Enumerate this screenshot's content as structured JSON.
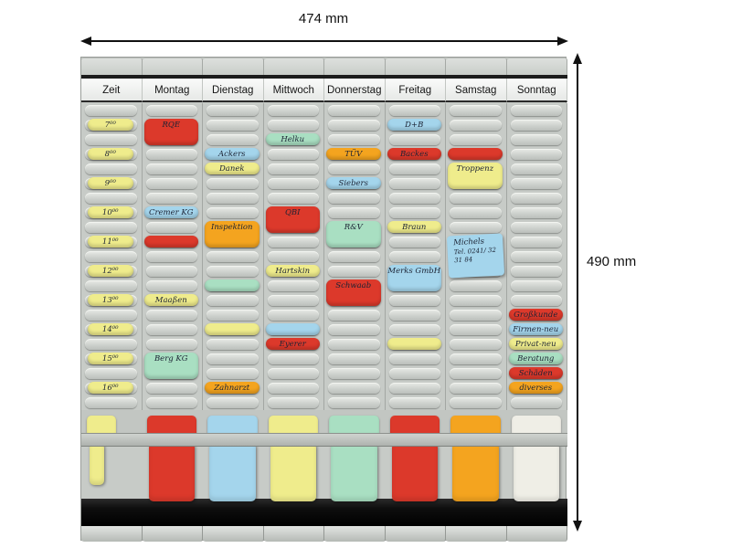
{
  "annotations": {
    "width_label": "474 mm",
    "height_label": "490 mm"
  },
  "board": {
    "columns": [
      {
        "header": "Zeit"
      },
      {
        "header": "Montag"
      },
      {
        "header": "Dienstag"
      },
      {
        "header": "Mittwoch"
      },
      {
        "header": "Donnerstag"
      },
      {
        "header": "Freitag"
      },
      {
        "header": "Samstag"
      },
      {
        "header": "Sonntag"
      }
    ],
    "rows_per_column": 21,
    "colors": {
      "yellow": "#efec8c",
      "red": "#dc392b",
      "blue": "#a4d5ec",
      "green": "#a9dfc2",
      "orange": "#f4a41f",
      "white": "#efeee6"
    },
    "cards": [
      {
        "col": 0,
        "row": 1,
        "color": "yellow",
        "label": "7⁰⁰",
        "size": "time"
      },
      {
        "col": 0,
        "row": 3,
        "color": "yellow",
        "label": "8⁰⁰",
        "size": "time"
      },
      {
        "col": 0,
        "row": 5,
        "color": "yellow",
        "label": "9⁰⁰",
        "size": "time"
      },
      {
        "col": 0,
        "row": 7,
        "color": "yellow",
        "label": "10⁰⁰",
        "size": "time"
      },
      {
        "col": 0,
        "row": 9,
        "color": "yellow",
        "label": "11⁰⁰",
        "size": "time"
      },
      {
        "col": 0,
        "row": 11,
        "color": "yellow",
        "label": "12⁰⁰",
        "size": "time"
      },
      {
        "col": 0,
        "row": 13,
        "color": "yellow",
        "label": "13⁰⁰",
        "size": "time"
      },
      {
        "col": 0,
        "row": 15,
        "color": "yellow",
        "label": "14⁰⁰",
        "size": "time"
      },
      {
        "col": 0,
        "row": 17,
        "color": "yellow",
        "label": "15⁰⁰",
        "size": "time"
      },
      {
        "col": 0,
        "row": 19,
        "color": "yellow",
        "label": "16⁰⁰",
        "size": "time"
      },
      {
        "col": 1,
        "row": 1,
        "span": 2,
        "color": "red",
        "label": "RQE"
      },
      {
        "col": 1,
        "row": 7,
        "color": "blue",
        "label": "Cremer KG"
      },
      {
        "col": 1,
        "row": 9,
        "color": "red",
        "label": ""
      },
      {
        "col": 1,
        "row": 13,
        "color": "yellow",
        "label": "Maaßen"
      },
      {
        "col": 1,
        "row": 17,
        "span": 2,
        "color": "green",
        "label": "Berg KG"
      },
      {
        "col": 2,
        "row": 3,
        "color": "blue",
        "label": "Ackers"
      },
      {
        "col": 2,
        "row": 4,
        "color": "yellow",
        "label": "Danek"
      },
      {
        "col": 2,
        "row": 8,
        "span": 2,
        "color": "orange",
        "label": "Inspektion"
      },
      {
        "col": 2,
        "row": 12,
        "color": "green",
        "label": ""
      },
      {
        "col": 2,
        "row": 15,
        "color": "yellow",
        "label": ""
      },
      {
        "col": 2,
        "row": 19,
        "color": "orange",
        "label": "Zahnarzt"
      },
      {
        "col": 3,
        "row": 2,
        "color": "green",
        "label": "Helku"
      },
      {
        "col": 3,
        "row": 7,
        "span": 2,
        "color": "red",
        "label": "QBI"
      },
      {
        "col": 3,
        "row": 11,
        "color": "yellow",
        "label": "Hartskin"
      },
      {
        "col": 3,
        "row": 15,
        "color": "blue",
        "label": ""
      },
      {
        "col": 3,
        "row": 16,
        "color": "red",
        "label": "Eyerer"
      },
      {
        "col": 4,
        "row": 3,
        "color": "orange",
        "label": "TÜV"
      },
      {
        "col": 4,
        "row": 5,
        "color": "blue",
        "label": "Siebers"
      },
      {
        "col": 4,
        "row": 8,
        "span": 2,
        "color": "green",
        "label": "R&V"
      },
      {
        "col": 4,
        "row": 12,
        "span": 2,
        "color": "red",
        "label": "Schwaab"
      },
      {
        "col": 5,
        "row": 1,
        "color": "blue",
        "label": "D+B"
      },
      {
        "col": 5,
        "row": 3,
        "color": "red",
        "label": "Backes"
      },
      {
        "col": 5,
        "row": 8,
        "color": "yellow",
        "label": "Braun"
      },
      {
        "col": 5,
        "row": 11,
        "span": 2,
        "color": "blue",
        "label": "Merks GmbH"
      },
      {
        "col": 5,
        "row": 16,
        "color": "yellow",
        "label": ""
      },
      {
        "col": 6,
        "row": 3,
        "color": "red",
        "label": ""
      },
      {
        "col": 6,
        "row": 4,
        "span": 2,
        "color": "yellow",
        "label": "Troppenz"
      },
      {
        "col": 6,
        "row": 9,
        "span": 3,
        "color": "blue",
        "label": "Michels",
        "sublabel": "Tel. 0241/ 32 31 84",
        "type": "open"
      },
      {
        "col": 7,
        "row": 14,
        "color": "red",
        "label": "Großkunde"
      },
      {
        "col": 7,
        "row": 15,
        "color": "blue",
        "label": "Firmen-neu"
      },
      {
        "col": 7,
        "row": 16,
        "color": "yellow",
        "label": "Privat-neu"
      },
      {
        "col": 7,
        "row": 17,
        "color": "green",
        "label": "Beratung"
      },
      {
        "col": 7,
        "row": 18,
        "color": "red",
        "label": "Schäden"
      },
      {
        "col": 7,
        "row": 19,
        "color": "orange",
        "label": "diverses"
      }
    ],
    "bottom_cards": [
      {
        "col": 0,
        "color": "yellow",
        "size": "small"
      },
      {
        "col": 1,
        "color": "red"
      },
      {
        "col": 2,
        "color": "blue"
      },
      {
        "col": 3,
        "color": "yellow"
      },
      {
        "col": 4,
        "color": "green"
      },
      {
        "col": 5,
        "color": "red"
      },
      {
        "col": 6,
        "color": "orange"
      },
      {
        "col": 7,
        "color": "white"
      }
    ]
  }
}
